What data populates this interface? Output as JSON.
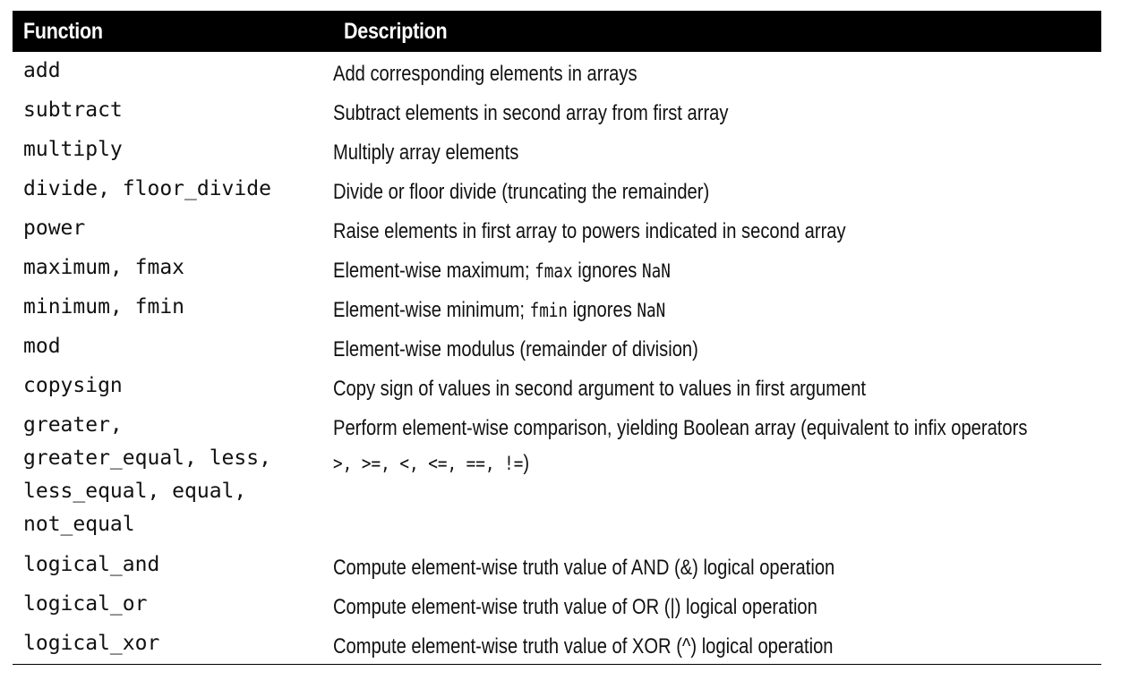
{
  "table": {
    "headers": {
      "function": "Function",
      "description": "Description"
    },
    "rows": [
      {
        "function": "add",
        "description": "Add corresponding elements in arrays"
      },
      {
        "function": "subtract",
        "description": "Subtract elements in second array from first array"
      },
      {
        "function": "multiply",
        "description": "Multiply array elements"
      },
      {
        "function": "divide, floor_divide",
        "description": "Divide or floor divide (truncating the remainder)"
      },
      {
        "function": "power",
        "description": "Raise elements in first array to powers indicated in second array"
      },
      {
        "function": "maximum, fmax",
        "description_parts": [
          "Element-wise maximum; ",
          "fmax",
          " ignores ",
          "NaN"
        ]
      },
      {
        "function": "minimum, fmin",
        "description_parts": [
          "Element-wise minimum; ",
          "fmin",
          " ignores ",
          "NaN"
        ]
      },
      {
        "function": "mod",
        "description": "Element-wise modulus (remainder of division)"
      },
      {
        "function": "copysign",
        "description": "Copy sign of values in second argument to values in first argument"
      },
      {
        "function_lines": [
          "greater,",
          "greater_equal, less,",
          "less_equal, equal,",
          "not_equal"
        ],
        "description_line1": "Perform element-wise comparison, yielding Boolean array (equivalent to infix operators",
        "description_ops": ">, >=, <, <=, ==, !=",
        "description_close": ")"
      },
      {
        "function": "logical_and",
        "description": "Compute element-wise truth value of AND (&) logical operation"
      },
      {
        "function": "logical_or",
        "description": "Compute element-wise truth value of OR (|) logical operation"
      },
      {
        "function": "logical_xor",
        "description": "Compute element-wise truth value of XOR (^) logical operation"
      }
    ]
  }
}
